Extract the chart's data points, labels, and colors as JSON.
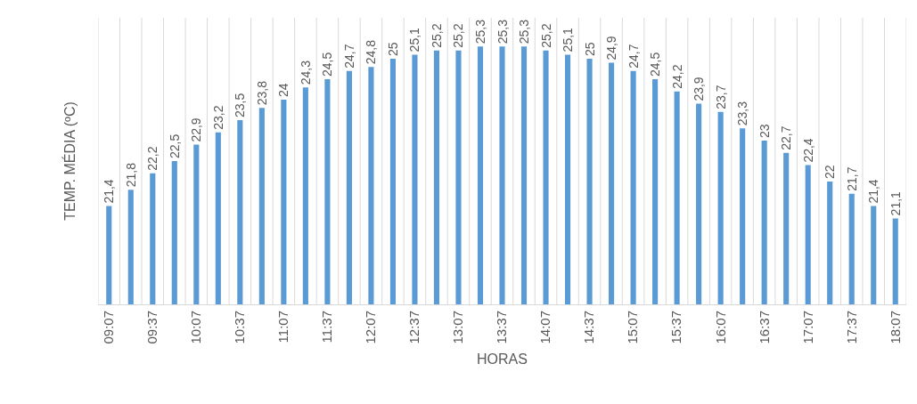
{
  "chart_data": {
    "type": "bar",
    "xlabel": "HORAS",
    "ylabel": "TEMP. MÉDIA (ºC)",
    "categories": [
      "09:07",
      null,
      "09:37",
      null,
      "10:07",
      null,
      "10:37",
      null,
      "11:07",
      null,
      "11:37",
      null,
      "12:07",
      null,
      "12:37",
      null,
      "13:07",
      null,
      "13:37",
      null,
      "14:07",
      null,
      "14:37",
      null,
      "15:07",
      null,
      "15:37",
      null,
      "16:07",
      null,
      "16:37",
      null,
      "17:07",
      null,
      "17:37",
      null,
      "18:07"
    ],
    "values": [
      21.4,
      21.8,
      22.2,
      22.5,
      22.9,
      23.2,
      23.5,
      23.8,
      24,
      24.3,
      24.5,
      24.7,
      24.8,
      25,
      25.1,
      25.2,
      25.2,
      25.3,
      25.3,
      25.3,
      25.2,
      25.1,
      25,
      24.9,
      24.7,
      24.5,
      24.2,
      23.9,
      23.7,
      23.3,
      23,
      22.7,
      22.4,
      22,
      21.7,
      21.4,
      21.1
    ],
    "value_labels": [
      "21,4",
      "21,8",
      "22,2",
      "22,5",
      "22,9",
      "23,2",
      "23,5",
      "23,8",
      "24",
      "24,3",
      "24,5",
      "24,7",
      "24,8",
      "25",
      "25,1",
      "25,2",
      "25,2",
      "25,3",
      "25,3",
      "25,3",
      "25,2",
      "25,1",
      "25",
      "24,9",
      "24,7",
      "24,5",
      "24,2",
      "23,9",
      "23,7",
      "23,3",
      "23",
      "22,7",
      "22,4",
      "22",
      "21,7",
      "21,4",
      "21,1"
    ],
    "color": "#5b9bd5",
    "ylim": [
      19,
      26
    ],
    "grid": "x"
  }
}
